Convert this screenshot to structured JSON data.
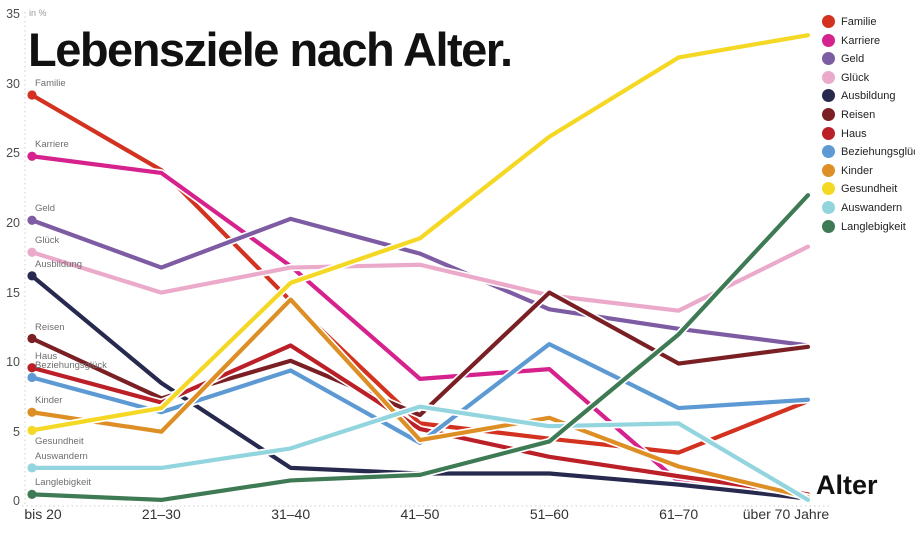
{
  "header": {
    "title": "Lebensziele nach Alter."
  },
  "axis": {
    "unit_label": "in %",
    "x_axis_title": "Alter",
    "x_labels": [
      "bis 20",
      "21–30",
      "31–40",
      "41–50",
      "51–60",
      "61–70",
      "über 70 Jahre"
    ],
    "y_ticks": [
      35,
      30,
      25,
      20,
      15,
      10,
      5,
      0
    ]
  },
  "chart_data": {
    "type": "line",
    "title": "Lebensziele nach Alter.",
    "xlabel": "Alter",
    "ylabel": "in %",
    "ylim": [
      0,
      35
    ],
    "grid": false,
    "legend_position": "top-right",
    "categories": [
      "bis 20",
      "21–30",
      "31–40",
      "41–50",
      "51–60",
      "61–70",
      "über 70 Jahre"
    ],
    "series": [
      {
        "name": "Familie",
        "color": "#d2321f",
        "values": [
          29.2,
          23.8,
          14.4,
          5.6,
          4.5,
          3.5,
          7.2
        ]
      },
      {
        "name": "Karriere",
        "color": "#d6228c",
        "values": [
          24.8,
          23.6,
          16.9,
          8.8,
          9.5,
          1.4,
          0.3
        ]
      },
      {
        "name": "Geld",
        "color": "#7d5ca3",
        "values": [
          20.2,
          16.8,
          20.3,
          17.8,
          13.8,
          12.4,
          11.2
        ]
      },
      {
        "name": "Glück",
        "color": "#ecaacb",
        "values": [
          17.9,
          15.0,
          16.8,
          17.0,
          14.8,
          13.7,
          18.3
        ]
      },
      {
        "name": "Ausbildung",
        "color": "#27294f",
        "values": [
          16.2,
          8.5,
          2.4,
          2.0,
          2.0,
          1.2,
          0.2
        ]
      },
      {
        "name": "Reisen",
        "color": "#7a2025",
        "values": [
          11.7,
          7.4,
          10.1,
          6.2,
          15.0,
          9.9,
          11.1
        ]
      },
      {
        "name": "Haus",
        "color": "#bb1f27",
        "values": [
          9.6,
          7.1,
          11.2,
          5.2,
          3.2,
          1.8,
          0.5
        ]
      },
      {
        "name": "Beziehungsglück",
        "color": "#5d9ad3",
        "values": [
          8.9,
          6.4,
          9.4,
          4.2,
          11.3,
          6.7,
          7.3
        ]
      },
      {
        "name": "Kinder",
        "color": "#dd8f25",
        "values": [
          6.4,
          5.0,
          14.5,
          4.4,
          6.0,
          2.5,
          0.3
        ]
      },
      {
        "name": "Gesundheit",
        "color": "#f4d824",
        "values": [
          5.1,
          6.7,
          15.7,
          18.9,
          26.2,
          31.9,
          33.5
        ]
      },
      {
        "name": "Auswandern",
        "color": "#92d5de",
        "values": [
          2.4,
          2.4,
          3.8,
          6.8,
          5.4,
          5.6,
          0.1
        ]
      },
      {
        "name": "Langlebigkeit",
        "color": "#3e7a54",
        "values": [
          0.5,
          0.1,
          1.5,
          1.9,
          4.3,
          12.0,
          22.0
        ]
      }
    ]
  }
}
